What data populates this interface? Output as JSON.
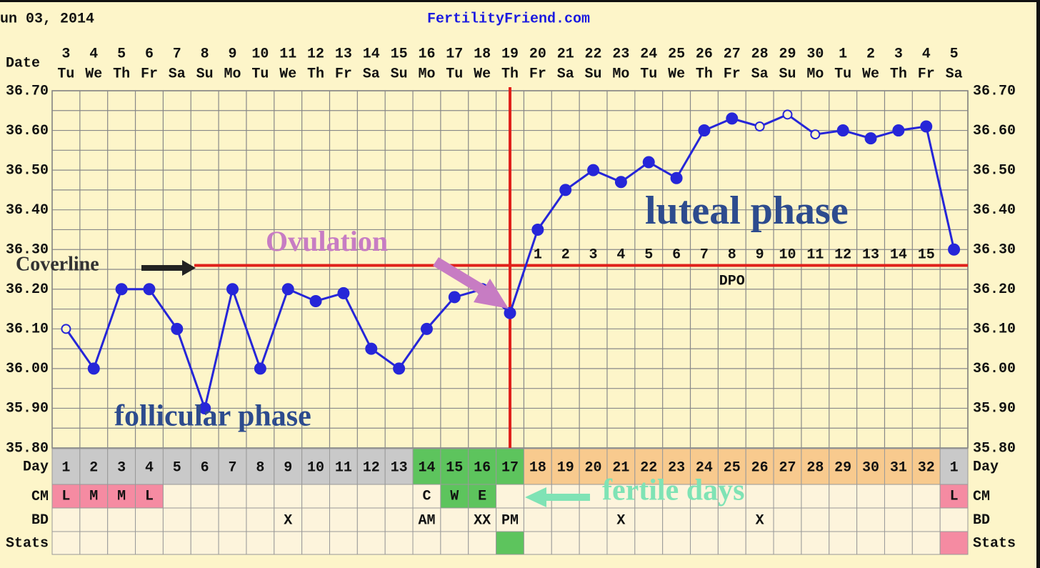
{
  "chart_data": {
    "type": "line",
    "header_date": "un 03, 2014",
    "site": "FertilityFriend.com",
    "x_label": "Date",
    "categories": [
      "3",
      "4",
      "5",
      "6",
      "7",
      "8",
      "9",
      "10",
      "11",
      "12",
      "13",
      "14",
      "15",
      "16",
      "17",
      "18",
      "19",
      "20",
      "21",
      "22",
      "23",
      "24",
      "25",
      "26",
      "27",
      "28",
      "29",
      "30",
      "1",
      "2",
      "3",
      "4",
      "5"
    ],
    "weekdays": [
      "Tu",
      "We",
      "Th",
      "Fr",
      "Sa",
      "Su",
      "Mo",
      "Tu",
      "We",
      "Th",
      "Fr",
      "Sa",
      "Su",
      "Mo",
      "Tu",
      "We",
      "Th",
      "Fr",
      "Sa",
      "Su",
      "Mo",
      "Tu",
      "We",
      "Th",
      "Fr",
      "Sa",
      "Su",
      "Mo",
      "Tu",
      "We",
      "Th",
      "Fr",
      "Sa"
    ],
    "values": [
      36.1,
      36.0,
      36.2,
      36.2,
      36.1,
      35.9,
      36.2,
      36.0,
      36.2,
      36.17,
      36.19,
      36.05,
      36.0,
      36.1,
      36.18,
      36.2,
      36.14,
      36.35,
      36.45,
      36.5,
      36.47,
      36.52,
      36.48,
      36.6,
      36.63,
      36.61,
      36.64,
      36.59,
      36.6,
      36.58,
      36.6,
      36.61,
      36.3
    ],
    "open_markers": [
      true,
      false,
      false,
      false,
      false,
      false,
      false,
      false,
      false,
      false,
      false,
      false,
      false,
      false,
      false,
      false,
      false,
      false,
      false,
      false,
      false,
      false,
      false,
      false,
      false,
      true,
      true,
      true,
      false,
      false,
      false,
      false,
      false
    ],
    "color": "#2626d8",
    "ylim": [
      35.8,
      36.7
    ],
    "yticks": [
      {
        "value": 36.7,
        "label": "36.70"
      },
      {
        "value": 36.6,
        "label": "36.60"
      },
      {
        "value": 36.5,
        "label": "36.50"
      },
      {
        "value": 36.4,
        "label": "36.40"
      },
      {
        "value": 36.3,
        "label": "36.30"
      },
      {
        "value": 36.2,
        "label": "36.20"
      },
      {
        "value": 36.1,
        "label": "36.10"
      },
      {
        "value": 36.0,
        "label": "36.00"
      },
      {
        "value": 35.9,
        "label": "35.90"
      },
      {
        "value": 35.8,
        "label": "35.80"
      }
    ],
    "grid": true,
    "coverline": {
      "value": 36.26,
      "label": "Coverline",
      "color": "#e0211b"
    },
    "ovulation": {
      "day": 17,
      "label": "Ovulation",
      "color": "#e0211b"
    },
    "dpo": {
      "label": "DPO",
      "days": [
        1,
        2,
        3,
        4,
        5,
        6,
        7,
        8,
        9,
        10,
        11,
        12,
        13,
        14,
        15
      ]
    },
    "annotations": {
      "luteal": "luteal phase",
      "follicular": "follicular phase",
      "fertile": "fertile days"
    },
    "table": {
      "row_labels": [
        "Day",
        "CM",
        "BD",
        "Stats"
      ],
      "days": [
        1,
        2,
        3,
        4,
        5,
        6,
        7,
        8,
        9,
        10,
        11,
        12,
        13,
        14,
        15,
        16,
        17,
        18,
        19,
        20,
        21,
        22,
        23,
        24,
        25,
        26,
        27,
        28,
        29,
        30,
        31,
        32,
        1
      ],
      "day_colors": [
        "#c9c9c9",
        "#c9c9c9",
        "#c9c9c9",
        "#c9c9c9",
        "#c9c9c9",
        "#c9c9c9",
        "#c9c9c9",
        "#c9c9c9",
        "#c9c9c9",
        "#c9c9c9",
        "#c9c9c9",
        "#c9c9c9",
        "#c9c9c9",
        "#5dc45d",
        "#5dc45d",
        "#5dc45d",
        "#5dc45d",
        "#f8ca8e",
        "#f8ca8e",
        "#f8ca8e",
        "#f8ca8e",
        "#f8ca8e",
        "#f8ca8e",
        "#f8ca8e",
        "#f8ca8e",
        "#f8ca8e",
        "#f8ca8e",
        "#f8ca8e",
        "#f8ca8e",
        "#f8ca8e",
        "#f8ca8e",
        "#f8ca8e",
        "#c9c9c9"
      ],
      "cm": [
        "L",
        "M",
        "M",
        "L",
        null,
        null,
        null,
        null,
        null,
        null,
        null,
        null,
        null,
        "C",
        "W",
        "E",
        null,
        null,
        null,
        null,
        null,
        null,
        null,
        null,
        null,
        null,
        null,
        null,
        null,
        null,
        null,
        null,
        "L"
      ],
      "cm_colors": [
        "#f58ba2",
        "#f58ba2",
        "#f58ba2",
        "#f58ba2",
        null,
        null,
        null,
        null,
        null,
        null,
        null,
        null,
        null,
        null,
        "#5dc45d",
        "#5dc45d",
        null,
        null,
        null,
        null,
        null,
        null,
        null,
        null,
        null,
        null,
        null,
        null,
        null,
        null,
        null,
        null,
        "#f58ba2"
      ],
      "bd": [
        null,
        null,
        null,
        null,
        null,
        null,
        null,
        null,
        "X",
        null,
        null,
        null,
        null,
        "AM",
        null,
        "XX",
        "PM",
        null,
        null,
        null,
        "X",
        null,
        null,
        null,
        null,
        "X",
        null,
        null,
        null,
        null,
        null,
        null,
        null
      ],
      "stats_colors": [
        null,
        null,
        null,
        null,
        null,
        null,
        null,
        null,
        null,
        null,
        null,
        null,
        null,
        null,
        null,
        null,
        "#5dc45d",
        null,
        null,
        null,
        null,
        null,
        null,
        null,
        null,
        null,
        null,
        null,
        null,
        null,
        null,
        null,
        "#f58ba2"
      ]
    }
  }
}
